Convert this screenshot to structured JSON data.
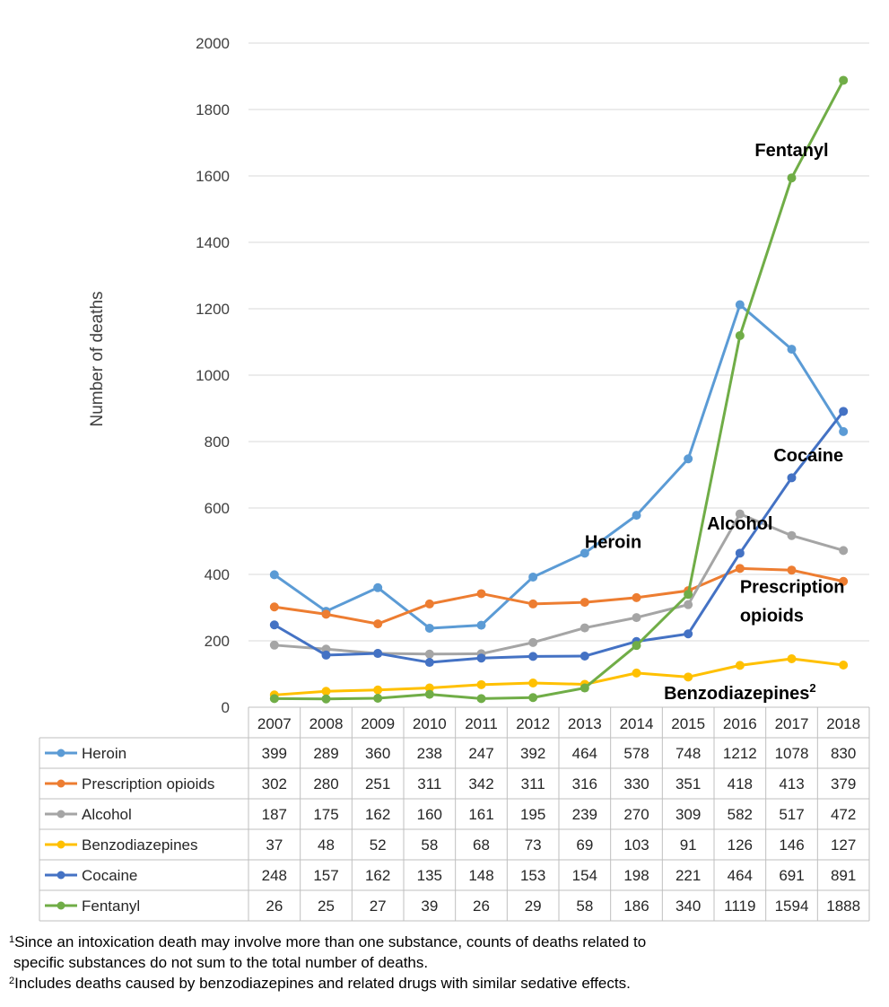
{
  "chart_data": {
    "type": "line",
    "ylabel": "Number of deaths",
    "ylim": [
      0,
      2000
    ],
    "yticks": [
      0,
      200,
      400,
      600,
      800,
      1000,
      1200,
      1400,
      1600,
      1800,
      2000
    ],
    "categories": [
      "2007",
      "2008",
      "2009",
      "2010",
      "2011",
      "2012",
      "2013",
      "2014",
      "2015",
      "2016",
      "2017",
      "2018"
    ],
    "grid": true,
    "legend": "data-table-below",
    "series": [
      {
        "name": "Heroin",
        "color": "#5b9bd5",
        "values": [
          399,
          289,
          360,
          238,
          247,
          392,
          464,
          578,
          748,
          1212,
          1078,
          830
        ]
      },
      {
        "name": "Prescription opioids",
        "color": "#ed7d31",
        "values": [
          302,
          280,
          251,
          311,
          342,
          311,
          316,
          330,
          351,
          418,
          413,
          379
        ]
      },
      {
        "name": "Alcohol",
        "color": "#a5a5a5",
        "values": [
          187,
          175,
          162,
          160,
          161,
          195,
          239,
          270,
          309,
          582,
          517,
          472
        ]
      },
      {
        "name": "Benzodiazepines",
        "color": "#ffc000",
        "values": [
          37,
          48,
          52,
          58,
          68,
          73,
          69,
          103,
          91,
          126,
          146,
          127
        ]
      },
      {
        "name": "Cocaine",
        "color": "#4472c4",
        "values": [
          248,
          157,
          162,
          135,
          148,
          153,
          154,
          198,
          221,
          464,
          691,
          891
        ]
      },
      {
        "name": "Fentanyl",
        "color": "#70ad47",
        "values": [
          26,
          25,
          27,
          39,
          26,
          29,
          58,
          186,
          340,
          1119,
          1594,
          1888
        ]
      }
    ],
    "annotations": [
      {
        "text": "Fentanyl",
        "lines": [
          "Fentanyl"
        ],
        "at_year": "2017",
        "at_value": 1660,
        "anchor": "middle"
      },
      {
        "text": "Cocaine",
        "lines": [
          "Cocaine"
        ],
        "at_year": "2018",
        "at_value": 740,
        "anchor": "end"
      },
      {
        "text": "Alcohol",
        "lines": [
          "Alcohol"
        ],
        "at_year": "2016",
        "at_value": 535,
        "anchor": "middle"
      },
      {
        "text": "Heroin",
        "lines": [
          "Heroin"
        ],
        "at_year": "2013",
        "at_value": 480,
        "anchor": "start"
      },
      {
        "text": "Prescription opioids",
        "lines": [
          "Prescription",
          "opioids"
        ],
        "at_year": "2016",
        "at_value": 345,
        "anchor": "start"
      },
      {
        "text": "Benzodiazepines",
        "lines": [
          "Benzodiazepines"
        ],
        "at_year": "2016",
        "at_value": 25,
        "anchor": "middle",
        "superscript": "2"
      }
    ]
  },
  "footnotes": {
    "fn1_mark": "1",
    "fn1_line1": "Since an intoxication death may involve more than one substance, counts of deaths related to",
    "fn1_line2": "specific substances do not sum to the total number of deaths.",
    "fn2_mark": "2",
    "fn2_text": "Includes deaths caused by benzodiazepines and related drugs with similar sedative effects."
  }
}
